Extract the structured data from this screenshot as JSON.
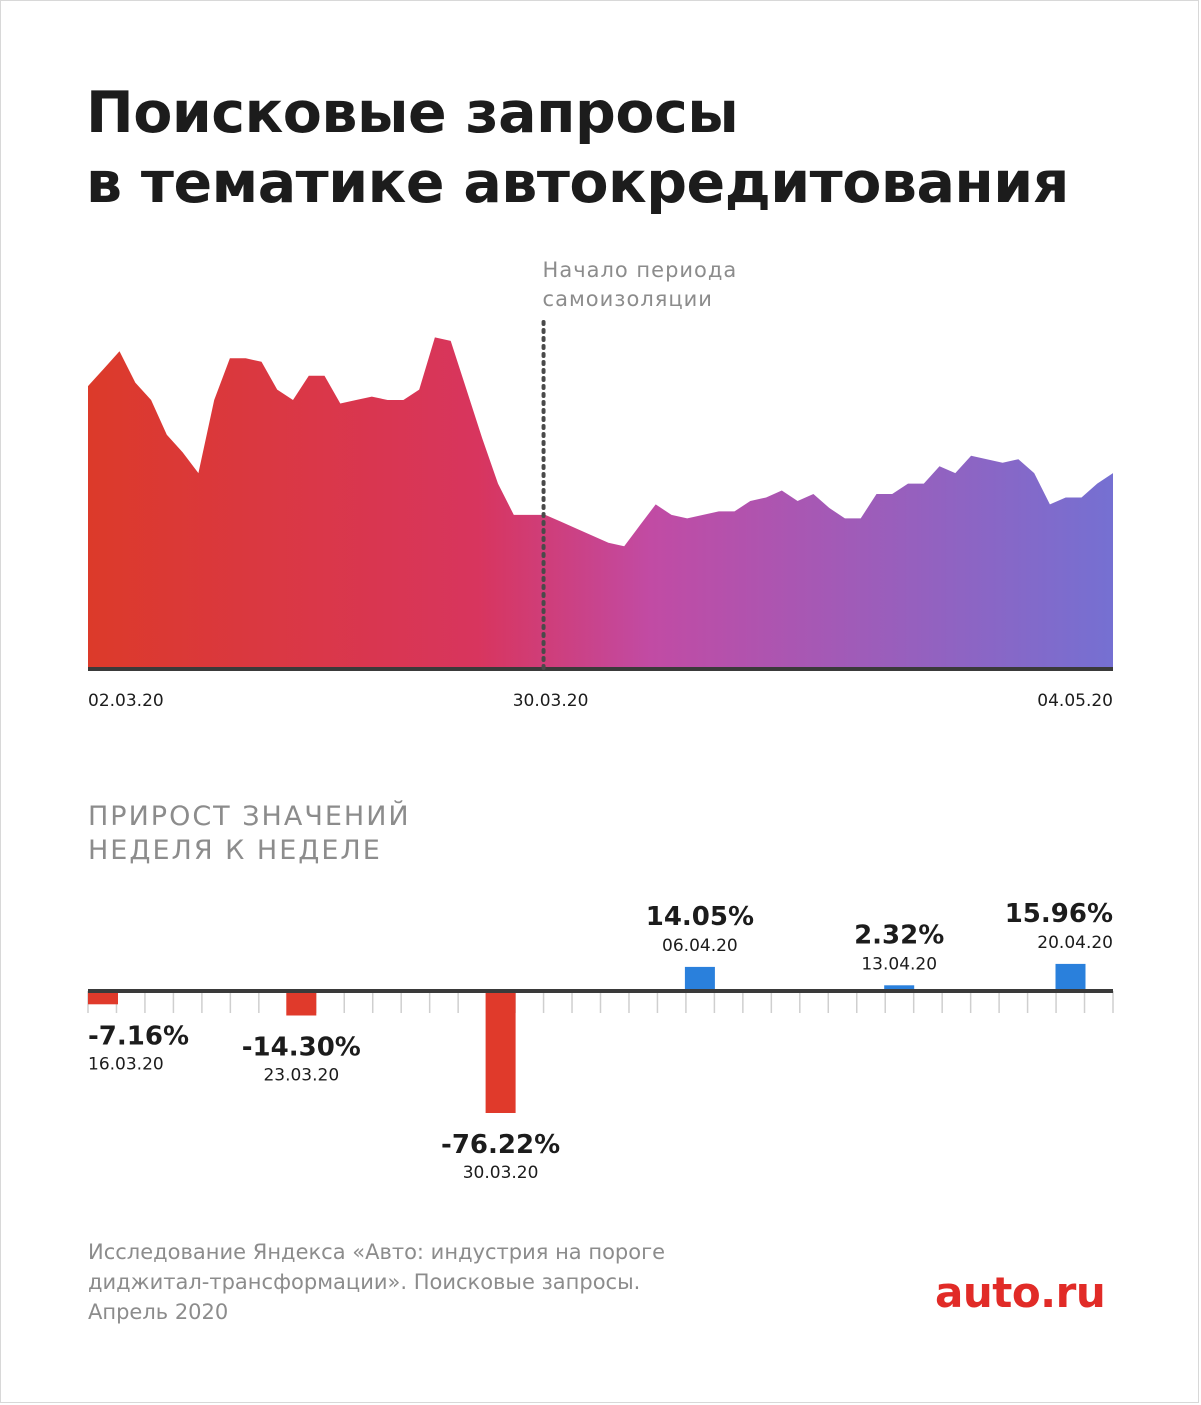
{
  "title_lines": [
    "Поисковые запросы",
    "в тематике автокредитования"
  ],
  "subtitle_lines": [
    "ПРИРОСТ ЗНАЧЕНИЙ",
    "НЕДЕЛЯ К НЕДЕЛЕ"
  ],
  "source_lines": [
    "Исследование Яндекса «Авто: индустрия на пороге",
    "диджитал-трансформации». Поисковые запросы.",
    "Апрель 2020"
  ],
  "logo": "auto.ru",
  "colors": {
    "gradient_start": "#dc3a2a",
    "gradient_mid1": "#d8355e",
    "gradient_mid2": "#c14ba4",
    "gradient_end": "#7570d2",
    "negative": "#e03a2b",
    "positive": "#2a80dc",
    "axis": "#3a3a3a",
    "muted": "#8c8c8c",
    "dotted": "#4a4a4a"
  },
  "chart_data": [
    {
      "type": "area",
      "title": "Поисковые запросы в тематике автокредитования",
      "x_start": "02.03.20",
      "x_end": "04.05.20",
      "x_tick_labels": [
        "02.03.20",
        "30.03.20",
        "04.05.20"
      ],
      "annotation": {
        "date": "30.03.20",
        "label_lines": [
          "Начало периода",
          "самоизоляции"
        ]
      },
      "ylim": [
        0,
        100
      ],
      "values": [
        81,
        86,
        91,
        82,
        77,
        67,
        62,
        56,
        77,
        89,
        89,
        88,
        80,
        77,
        84,
        84,
        76,
        77,
        78,
        77,
        77,
        80,
        95,
        94,
        80,
        66,
        53,
        44,
        44,
        44,
        42,
        40,
        38,
        36,
        35,
        41,
        47,
        44,
        43,
        44,
        45,
        45,
        48,
        49,
        51,
        48,
        50,
        46,
        43,
        43,
        50,
        50,
        53,
        53,
        58,
        56,
        61,
        60,
        59,
        60,
        56,
        47,
        49,
        49,
        53,
        56
      ]
    },
    {
      "type": "bar",
      "title": "ПРИРОСТ ЗНАЧЕНИЙ НЕДЕЛЯ К НЕДЕЛЕ",
      "unit": "%",
      "slot_count": 37,
      "categories": [
        "16.03.20",
        "23.03.20",
        "30.03.20",
        "06.04.20",
        "13.04.20",
        "20.04.20"
      ],
      "values": [
        -7.16,
        -14.3,
        -76.22,
        14.05,
        2.32,
        15.96
      ],
      "value_labels": [
        "-7.16%",
        "-14.30%",
        "-76.22%",
        "14.05%",
        "2.32%",
        "15.96%"
      ],
      "slots": [
        0,
        7,
        14,
        21,
        28,
        35
      ]
    }
  ]
}
